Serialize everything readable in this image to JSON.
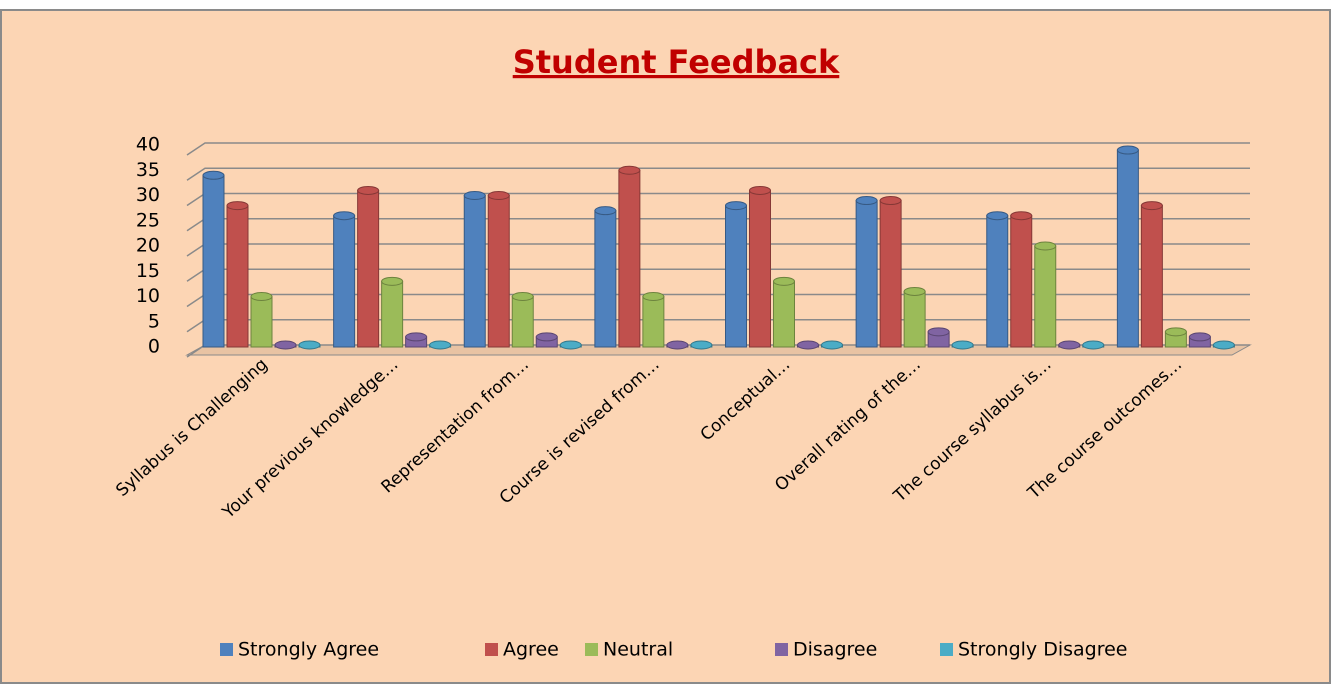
{
  "chart_data": {
    "type": "bar",
    "title": "Student Feedback",
    "categories": [
      "Syllabus is Challenging",
      "Your previous knowledge…",
      "Representation from…",
      "Course is revised from…",
      "Conceptual…",
      "Overall rating of the…",
      "The course syllabus is…",
      "The course outcomes…"
    ],
    "series": [
      {
        "name": "Strongly Agree",
        "color": "#4f81bd",
        "values": [
          34,
          26,
          30,
          27,
          28,
          29,
          26,
          39
        ]
      },
      {
        "name": "Agree",
        "color": "#c0504d",
        "values": [
          28,
          31,
          30,
          35,
          31,
          29,
          26,
          28
        ]
      },
      {
        "name": "Neutral",
        "color": "#9bbb59",
        "values": [
          10,
          13,
          10,
          10,
          13,
          11,
          20,
          3
        ]
      },
      {
        "name": "Disagree",
        "color": "#8064a2",
        "values": [
          0,
          2,
          2,
          0,
          0,
          3,
          0,
          2
        ]
      },
      {
        "name": "Strongly Disagree",
        "color": "#4bacc6",
        "values": [
          0,
          0,
          0,
          0,
          0,
          0,
          0,
          0
        ]
      }
    ],
    "ylim": [
      0,
      40
    ],
    "yticks": [
      0,
      5,
      10,
      15,
      20,
      25,
      30,
      35,
      40
    ],
    "grid": true,
    "legend": "bottom"
  }
}
